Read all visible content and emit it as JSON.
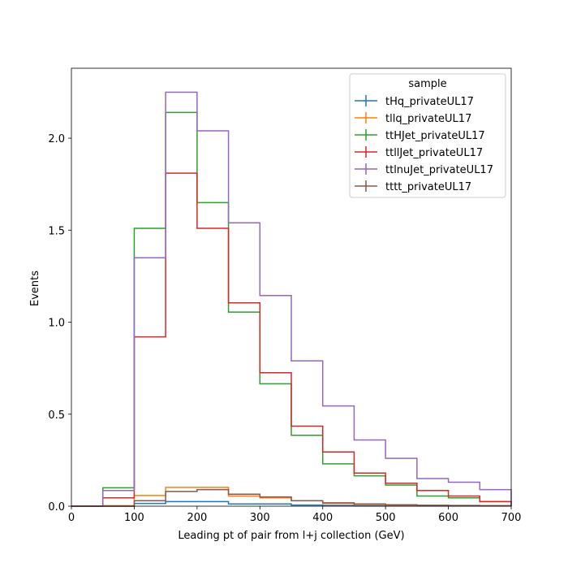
{
  "chart_data": {
    "type": "histogram-step",
    "xlabel": "Leading pt of pair from l+j collection (GeV)",
    "ylabel": "Events",
    "xlim": [
      0,
      700
    ],
    "ylim": [
      0,
      2.38
    ],
    "xticks": [
      0,
      100,
      200,
      300,
      400,
      500,
      600,
      700
    ],
    "yticks": [
      0.0,
      0.5,
      1.0,
      1.5,
      2.0
    ],
    "ytick_labels": [
      "0.0",
      "0.5",
      "1.0",
      "1.5",
      "2.0"
    ],
    "grid": false,
    "legend": {
      "title": "sample",
      "placement": "top-right"
    },
    "bin_edges": [
      0,
      50,
      100,
      150,
      200,
      250,
      300,
      350,
      400,
      450,
      500,
      550,
      600,
      650,
      700
    ],
    "series": [
      {
        "name": "tHq_privateUL17",
        "color": "#1f77b4",
        "values": [
          0,
          0,
          0.015,
          0.025,
          0.025,
          0.012,
          0.012,
          0.006,
          0.004,
          0.002,
          0.002,
          0.001,
          0.001,
          0.001
        ]
      },
      {
        "name": "tllq_privateUL17",
        "color": "#ff7f0e",
        "values": [
          0,
          0.003,
          0.058,
          0.102,
          0.102,
          0.055,
          0.045,
          0.03,
          0.015,
          0.01,
          0.006,
          0.004,
          0.003,
          0.002
        ]
      },
      {
        "name": "ttHJet_privateUL17",
        "color": "#2ca02c",
        "values": [
          0,
          0.1,
          1.51,
          2.14,
          1.65,
          1.055,
          0.665,
          0.385,
          0.23,
          0.165,
          0.115,
          0.055,
          0.045,
          0.025
        ]
      },
      {
        "name": "ttllJet_privateUL17",
        "color": "#d62728",
        "values": [
          0,
          0.045,
          0.92,
          1.81,
          1.51,
          1.105,
          0.725,
          0.435,
          0.295,
          0.18,
          0.125,
          0.085,
          0.055,
          0.025
        ]
      },
      {
        "name": "ttlnuJet_privateUL17",
        "color": "#9467bd",
        "values": [
          0,
          0.085,
          1.35,
          2.25,
          2.04,
          1.54,
          1.145,
          0.79,
          0.545,
          0.36,
          0.26,
          0.15,
          0.13,
          0.09
        ]
      },
      {
        "name": "tttt_privateUL17",
        "color": "#8c564b",
        "values": [
          0,
          0,
          0.03,
          0.08,
          0.09,
          0.065,
          0.05,
          0.03,
          0.018,
          0.012,
          0.008,
          0.005,
          0.004,
          0.003
        ]
      }
    ]
  }
}
